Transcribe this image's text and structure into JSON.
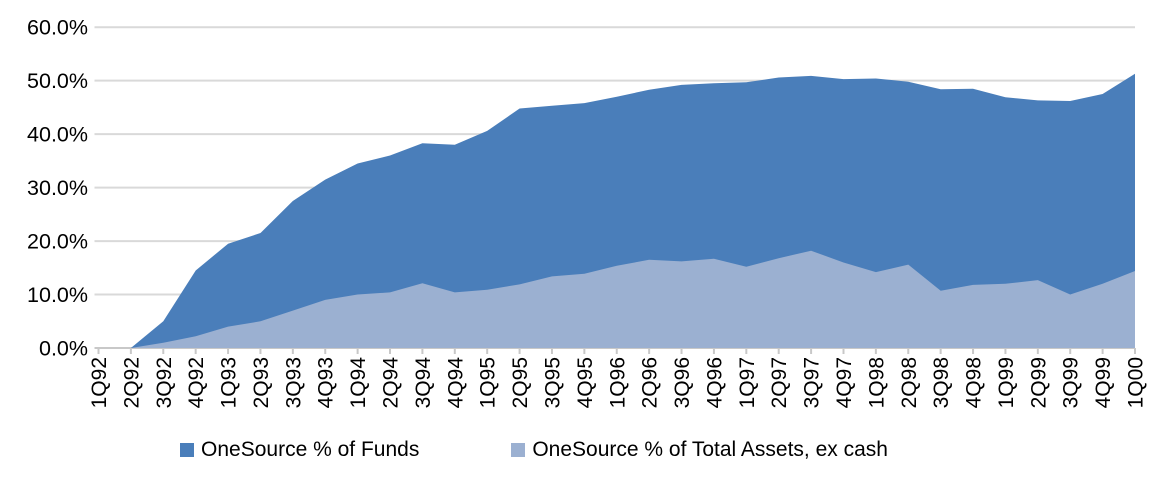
{
  "chart_data": {
    "type": "area",
    "title": "",
    "xlabel": "",
    "ylabel": "",
    "ylim": [
      0,
      60
    ],
    "grid": true,
    "legend_position": "bottom",
    "y_tick_labels": [
      "0.0%",
      "10.0%",
      "20.0%",
      "30.0%",
      "40.0%",
      "50.0%",
      "60.0%"
    ],
    "categories": [
      "1Q92",
      "2Q92",
      "3Q92",
      "4Q92",
      "1Q93",
      "2Q93",
      "3Q93",
      "4Q93",
      "1Q94",
      "2Q94",
      "3Q94",
      "4Q94",
      "1Q95",
      "2Q95",
      "3Q95",
      "4Q95",
      "1Q96",
      "2Q96",
      "3Q96",
      "4Q96",
      "1Q97",
      "2Q97",
      "3Q97",
      "4Q97",
      "1Q98",
      "2Q98",
      "3Q98",
      "4Q98",
      "1Q99",
      "2Q99",
      "3Q99",
      "4Q99",
      "1Q00"
    ],
    "series": [
      {
        "name": "OneSource % of Funds",
        "color": "#4A7EBA",
        "values": [
          0,
          0,
          5.0,
          14.5,
          19.5,
          21.5,
          27.5,
          31.5,
          34.5,
          36.0,
          38.3,
          38.0,
          40.6,
          44.8,
          45.3,
          45.8,
          47.0,
          48.3,
          49.2,
          49.5,
          49.7,
          50.6,
          50.9,
          50.3,
          50.4,
          49.8,
          48.4,
          48.5,
          46.9,
          46.3,
          46.2,
          47.5,
          51.3
        ]
      },
      {
        "name": "OneSource % of Total Assets, ex cash",
        "color": "#9BB0D1",
        "values": [
          0,
          0,
          1.0,
          2.2,
          4.0,
          5.0,
          7.0,
          9.0,
          10.0,
          10.4,
          12.1,
          10.4,
          10.9,
          11.9,
          13.4,
          13.9,
          15.4,
          16.5,
          16.2,
          16.7,
          15.2,
          16.8,
          18.2,
          16.0,
          14.2,
          15.6,
          10.7,
          11.8,
          12.0,
          12.7,
          10.0,
          12.0,
          14.4
        ]
      }
    ]
  },
  "colors": {
    "gridline": "#D9D9D9",
    "axis": "#C8C8C8",
    "label_text": "#000000"
  }
}
